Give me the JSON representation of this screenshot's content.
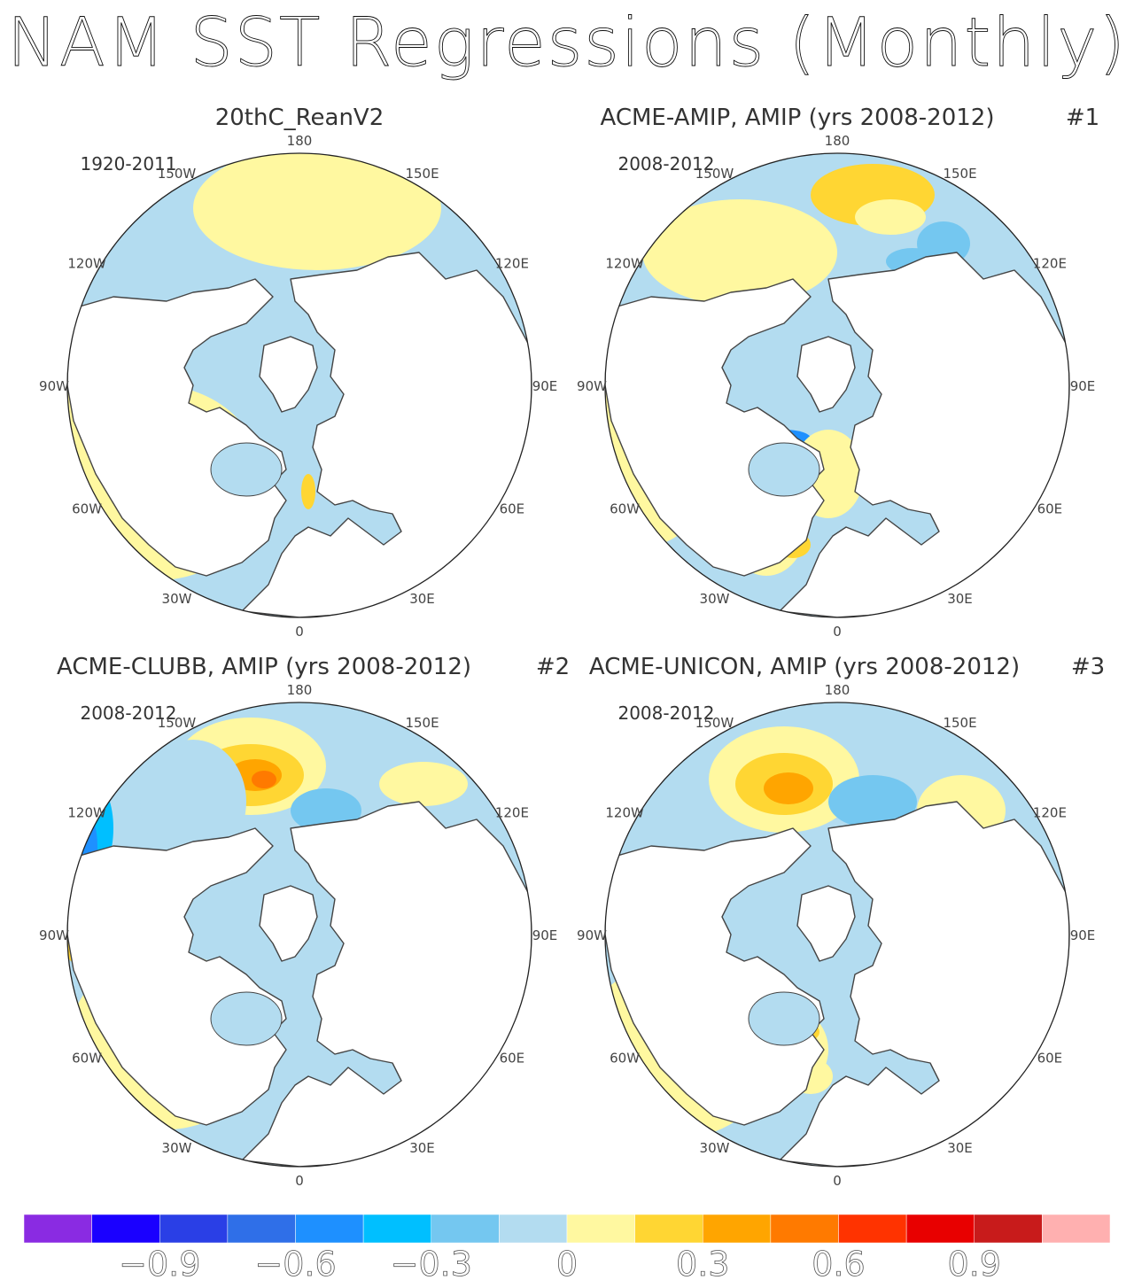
{
  "title": "NAM SST Regressions (Monthly)",
  "panels": [
    {
      "name": "20thC_ReanV2",
      "years": "1920-2011",
      "number": "",
      "scheme": "obs"
    },
    {
      "name": "ACME-AMIP, AMIP (yrs 2008-2012)",
      "years": "2008-2012",
      "number": "#1",
      "scheme": "amip"
    },
    {
      "name": "ACME-CLUBB, AMIP (yrs 2008-2012)",
      "years": "2008-2012",
      "number": "#2",
      "scheme": "clubb"
    },
    {
      "name": "ACME-UNICON, AMIP (yrs 2008-2012)",
      "years": "2008-2012",
      "number": "#3",
      "scheme": "unicon"
    }
  ],
  "longitude_labels": [
    "180",
    "150E",
    "120E",
    "90E",
    "60E",
    "30E",
    "0",
    "30W",
    "60W",
    "90W",
    "120W",
    "150W"
  ],
  "colorbar": {
    "colors": [
      "#8a2be2",
      "#1a00ff",
      "#2a3fe6",
      "#2f6fe8",
      "#1e90ff",
      "#00bfff",
      "#74c7f0",
      "#b3dcf0",
      "#fff8a0",
      "#ffd633",
      "#ffa500",
      "#ff7a00",
      "#ff3300",
      "#e80000",
      "#c81b1b",
      "#ffb0b0"
    ],
    "tick_labels": [
      "−0.9",
      "−0.6",
      "−0.3",
      "0",
      "0.3",
      "0.6",
      "0.9"
    ]
  },
  "colors": {
    "land": "#ffffff",
    "coast": "#444444",
    "text": "#333333"
  }
}
